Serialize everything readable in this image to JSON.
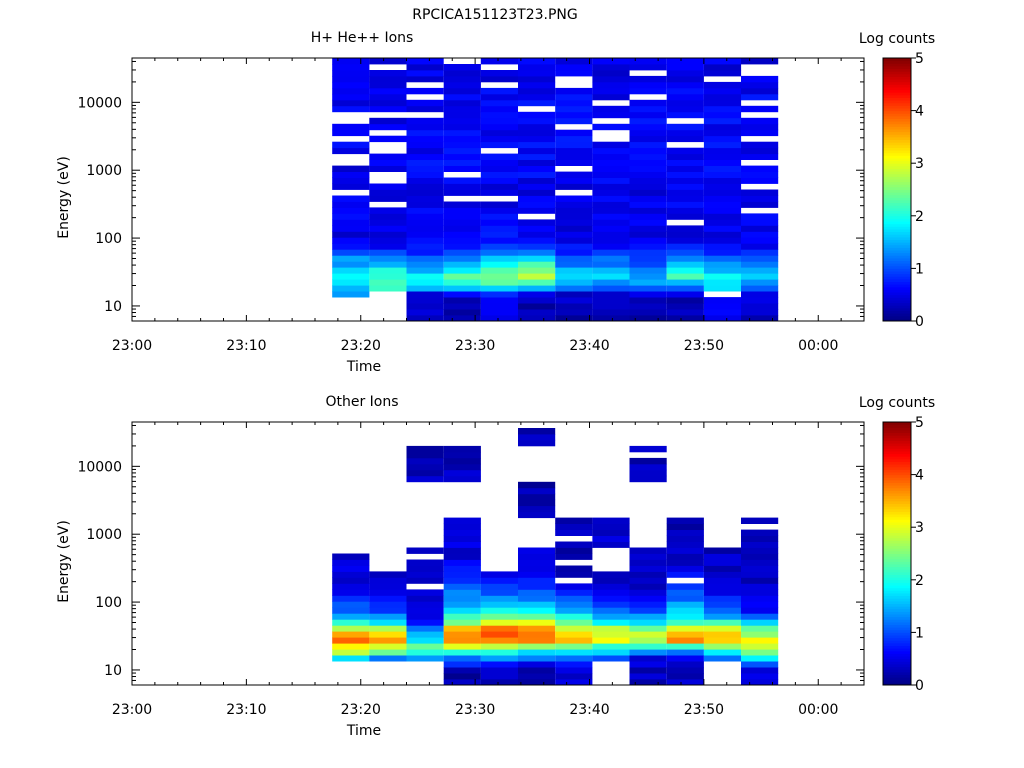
{
  "figure": {
    "filename": "RPCICA151123T23.PNG"
  },
  "chart_data": [
    {
      "type": "heatmap",
      "title": "H+ He++ Ions",
      "xlabel": "Time",
      "ylabel": "Energy (eV)",
      "y_scale": "log",
      "ylim_eV": [
        6,
        45000
      ],
      "x_ticks": [
        "23:00",
        "23:10",
        "23:20",
        "23:30",
        "23:40",
        "23:50",
        "00:00"
      ],
      "y_ticks": [
        "10",
        "100",
        "1000",
        "10000"
      ],
      "colorbar": {
        "label": "Log counts",
        "ticks": [
          "0",
          "1",
          "2",
          "3",
          "4",
          "5"
        ],
        "range": [
          0,
          5
        ]
      },
      "time_bins_start": [
        "23:17:30",
        "23:20:45",
        "23:24:00",
        "23:27:15",
        "23:30:30",
        "23:33:45",
        "23:37:00",
        "23:40:15",
        "23:43:30",
        "23:46:45",
        "23:50:00",
        "23:53:15"
      ],
      "time_bin_width_min": 3.25,
      "energy_profile_eV": [
        10,
        15,
        20,
        28,
        40,
        55,
        80,
        120,
        200,
        400,
        1000,
        3000,
        10000,
        35000
      ],
      "energy_profile_log_counts": [
        [
          null,
          1.3,
          1.8,
          2.0,
          1.5,
          1.2,
          0.6,
          0.5,
          0.6,
          0.5,
          0.5,
          0.6,
          0.5,
          0.5
        ],
        [
          null,
          null,
          2.0,
          2.2,
          1.6,
          1.2,
          0.6,
          0.5,
          0.6,
          0.5,
          0.5,
          0.6,
          0.5,
          0.5
        ],
        [
          0.3,
          0.4,
          2.0,
          1.9,
          1.2,
          1.0,
          0.6,
          0.5,
          0.6,
          0.5,
          0.6,
          0.6,
          0.5,
          0.5
        ],
        [
          0.2,
          0.5,
          2.1,
          2.3,
          1.6,
          1.2,
          0.7,
          0.5,
          0.6,
          0.5,
          0.6,
          0.6,
          0.6,
          0.5
        ],
        [
          0.5,
          0.7,
          2.2,
          2.5,
          1.8,
          1.4,
          0.8,
          0.6,
          0.6,
          0.5,
          0.6,
          0.6,
          0.6,
          0.5
        ],
        [
          0.2,
          0.4,
          2.0,
          2.7,
          2.2,
          1.5,
          0.8,
          0.6,
          0.6,
          0.5,
          0.6,
          0.6,
          0.6,
          0.5
        ],
        [
          0.2,
          0.4,
          1.6,
          1.8,
          1.3,
          1.0,
          0.6,
          0.5,
          0.6,
          0.5,
          0.6,
          0.6,
          0.6,
          0.5
        ],
        [
          0.3,
          0.5,
          1.4,
          1.6,
          1.2,
          1.0,
          0.6,
          0.5,
          0.6,
          0.5,
          0.6,
          0.6,
          0.6,
          0.5
        ],
        [
          0.2,
          0.5,
          1.3,
          1.5,
          1.0,
          0.9,
          0.6,
          0.5,
          0.6,
          0.5,
          0.6,
          0.6,
          0.6,
          0.5
        ],
        [
          0.2,
          0.4,
          1.4,
          2.2,
          1.6,
          1.2,
          0.7,
          0.5,
          0.6,
          0.5,
          0.6,
          0.6,
          0.6,
          0.5
        ],
        [
          0.6,
          null,
          1.6,
          1.9,
          1.3,
          1.0,
          0.6,
          0.5,
          0.6,
          0.5,
          0.6,
          0.6,
          0.6,
          0.5
        ],
        [
          0.3,
          0.5,
          1.4,
          1.7,
          1.2,
          0.9,
          0.6,
          0.5,
          0.6,
          0.5,
          0.6,
          0.6,
          0.6,
          0.5
        ]
      ]
    },
    {
      "type": "heatmap",
      "title": "Other Ions",
      "xlabel": "Time",
      "ylabel": "Energy (eV)",
      "y_scale": "log",
      "ylim_eV": [
        6,
        45000
      ],
      "x_ticks": [
        "23:00",
        "23:10",
        "23:20",
        "23:30",
        "23:40",
        "23:50",
        "00:00"
      ],
      "y_ticks": [
        "10",
        "100",
        "1000",
        "10000"
      ],
      "colorbar": {
        "label": "Log counts",
        "ticks": [
          "0",
          "1",
          "2",
          "3",
          "4",
          "5"
        ],
        "range": [
          0,
          5
        ]
      },
      "time_bins_start": [
        "23:17:30",
        "23:20:45",
        "23:24:00",
        "23:27:15",
        "23:30:30",
        "23:33:45",
        "23:37:00",
        "23:40:15",
        "23:43:30",
        "23:46:45",
        "23:50:00",
        "23:53:15"
      ],
      "time_bin_width_min": 3.25,
      "energy_profile_eV": [
        10,
        15,
        20,
        28,
        40,
        55,
        80,
        120,
        200,
        400,
        1000,
        3000,
        10000,
        35000
      ],
      "energy_profile_log_counts": [
        [
          null,
          1.9,
          3.0,
          3.8,
          3.0,
          1.8,
          1.1,
          0.7,
          0.5,
          0.4,
          null,
          null,
          null,
          null
        ],
        [
          null,
          1.2,
          2.8,
          3.5,
          2.9,
          1.5,
          0.8,
          0.5,
          0.4,
          null,
          null,
          null,
          null,
          null
        ],
        [
          null,
          1.3,
          2.5,
          1.8,
          1.2,
          0.6,
          0.5,
          0.4,
          0.3,
          0.3,
          null,
          null,
          0.3,
          null
        ],
        [
          0.2,
          1.3,
          2.6,
          3.9,
          3.4,
          2.3,
          1.5,
          1.3,
          1.0,
          0.5,
          0.4,
          null,
          0.3,
          null
        ],
        [
          0.3,
          1.3,
          2.5,
          3.9,
          3.8,
          2.5,
          1.8,
          1.3,
          0.6,
          null,
          null,
          null,
          null,
          null
        ],
        [
          0.2,
          1.1,
          2.1,
          4.0,
          3.9,
          2.6,
          1.6,
          1.2,
          0.7,
          0.4,
          null,
          0.2,
          null,
          0.3
        ],
        [
          0.4,
          1.2,
          1.8,
          3.5,
          3.0,
          2.1,
          1.3,
          0.9,
          0.5,
          0.2,
          0.3,
          null,
          null,
          null
        ],
        [
          null,
          1.1,
          1.7,
          3.2,
          2.8,
          1.6,
          0.9,
          0.6,
          0.4,
          null,
          0.4,
          null,
          null,
          null
        ],
        [
          0.3,
          0.5,
          1.5,
          2.9,
          2.6,
          1.6,
          0.9,
          0.5,
          0.4,
          0.3,
          null,
          null,
          0.3,
          null
        ],
        [
          0.3,
          0.5,
          1.5,
          3.7,
          3.2,
          2.0,
          1.5,
          1.1,
          0.7,
          0.4,
          0.3,
          null,
          null,
          null
        ],
        [
          null,
          1.2,
          2.0,
          3.6,
          3.0,
          1.8,
          1.0,
          0.7,
          0.4,
          0.3,
          null,
          null,
          null,
          null
        ],
        [
          0.4,
          1.8,
          2.6,
          3.2,
          2.3,
          1.4,
          0.6,
          0.4,
          0.3,
          0.4,
          0.4,
          null,
          null,
          null
        ]
      ]
    }
  ]
}
